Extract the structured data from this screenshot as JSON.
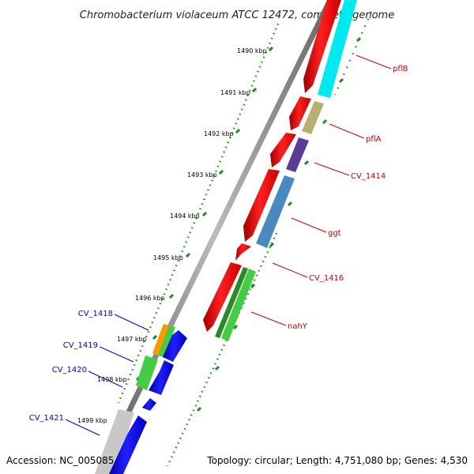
{
  "title": "Chromobacterium violaceum ATCC 12472, complete genome",
  "footer": {
    "accession": "Accession: NC_005085",
    "topology": "Topology: circular; Length: 4,751,080 bp; Genes: 4,530"
  },
  "ticks": [
    "1490 kbp",
    "1491 kbp",
    "1492 kbp",
    "1493 kbp",
    "1494 kbp",
    "1495 kbp",
    "1496 kbp",
    "1497 kbp",
    "1498 kbp",
    "1499 kbp"
  ],
  "genes_right": [
    "pflB",
    "pflA",
    "CV_1414",
    "ggt",
    "CV_1416",
    "nahY"
  ],
  "genes_left": [
    "CV_1418",
    "CV_1419",
    "CV_1420",
    "CV_1421"
  ],
  "colors": {
    "forward": "#ff0000",
    "reverse": "#0000ff",
    "label_right": "#cc0000",
    "label_left": "#0000cc",
    "tick": "#1a8a1a",
    "backbone": "#888888",
    "pflB_cog": "#00ffff",
    "pflA_cog": "#c8c080",
    "CV_1414_cog": "#6a4ca8",
    "ggt_cog": "#4a88c0",
    "nahY_cog": "#33bb33",
    "CV_1418_cog": "#ff9900",
    "CV_1419_cog": "#44cc44",
    "CV_1421_cog": "#c8c8c8"
  }
}
